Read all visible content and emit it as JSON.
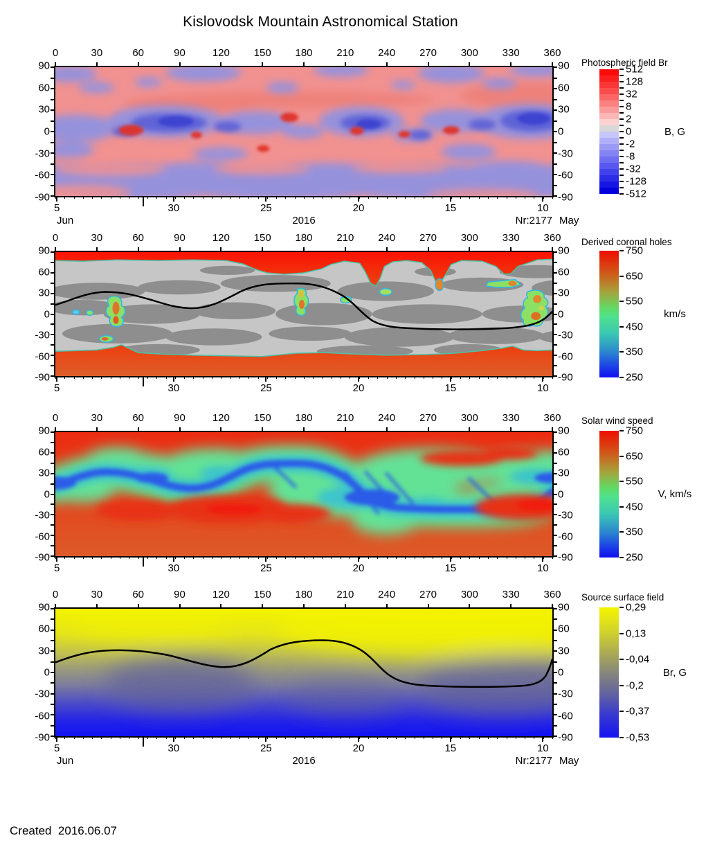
{
  "title": "Kislovodsk Mountain Astronomical Station",
  "footer": {
    "created": "Created  2016.06.07"
  },
  "axes": {
    "lon_labels": [
      "0",
      "30",
      "60",
      "90",
      "120",
      "150",
      "180",
      "210",
      "240",
      "270",
      "300",
      "330",
      "360"
    ],
    "lat_labels": [
      "90",
      "60",
      "30",
      "0",
      "-30",
      "-60",
      "-90"
    ],
    "date_labels": [
      "5",
      "30",
      "25",
      "20",
      "15",
      "10"
    ],
    "month_start": "Jun",
    "year": "2016",
    "rotation": "Nr:2177",
    "month_end": "May"
  },
  "panels": [
    {
      "name": "Photospheric field Br",
      "colorbar": {
        "title": "Photospheric field Br",
        "unit": "B, G",
        "labels": [
          "512",
          "128",
          "32",
          "8",
          "2",
          "0",
          "-2",
          "-8",
          "-32",
          "-128",
          "-512"
        ],
        "colors": [
          "#fb0a0a",
          "#fb2020",
          "#fb3636",
          "#fb4c4c",
          "#fb6666",
          "#fb8080",
          "#fb9a9a",
          "#fbb6b6",
          "#fbd2d2",
          "#d8d8d8",
          "#c6c6fa",
          "#b0b0f8",
          "#9a9af6",
          "#8484f4",
          "#6e6ef2",
          "#5858f0",
          "#4242ec",
          "#2c2ce8",
          "#1616e4",
          "#0202dd"
        ]
      }
    },
    {
      "name": "Derived coronal holes",
      "colorbar": {
        "title": "Derived coronal holes",
        "unit": "km/s",
        "labels": [
          "750",
          "650",
          "550",
          "450",
          "350",
          "250"
        ],
        "stops": [
          [
            "#ee0d00",
            0
          ],
          [
            "#cf5a1a",
            18
          ],
          [
            "#a7a13a",
            32
          ],
          [
            "#62d964",
            45
          ],
          [
            "#4fe18d",
            52
          ],
          [
            "#3bc9b2",
            65
          ],
          [
            "#2b86cf",
            80
          ],
          [
            "#1b3de8",
            92
          ],
          [
            "#120fee",
            100
          ]
        ]
      }
    },
    {
      "name": "Solar wind speed",
      "colorbar": {
        "title": "Solar wind speed",
        "unit": "V, km/s",
        "labels": [
          "750",
          "650",
          "550",
          "450",
          "350",
          "250"
        ],
        "stops": [
          [
            "#ee0d00",
            0
          ],
          [
            "#cf5a1a",
            18
          ],
          [
            "#a7a13a",
            32
          ],
          [
            "#62d964",
            45
          ],
          [
            "#4fe18d",
            52
          ],
          [
            "#3bc9b2",
            65
          ],
          [
            "#2b86cf",
            80
          ],
          [
            "#1b3de8",
            92
          ],
          [
            "#120fee",
            100
          ]
        ]
      }
    },
    {
      "name": "Source surface field",
      "colorbar": {
        "title": "Source surface field",
        "unit": "Br, G",
        "labels": [
          "0,29",
          "0,13",
          "-0,04",
          "-0,2",
          "-0,37",
          "-0,53"
        ],
        "stops": [
          [
            "#f6f600",
            0
          ],
          [
            "#cfcf30",
            20
          ],
          [
            "#a3a35c",
            38
          ],
          [
            "#83837f",
            52
          ],
          [
            "#5f5fa5",
            68
          ],
          [
            "#3a3ad0",
            82
          ],
          [
            "#1414f2",
            100
          ]
        ]
      }
    }
  ],
  "chart_data": [
    {
      "type": "heatmap",
      "title": "Photospheric field Br",
      "x_ticks": [
        0,
        30,
        60,
        90,
        120,
        150,
        180,
        210,
        240,
        270,
        300,
        330,
        360
      ],
      "y_ticks": [
        90,
        60,
        30,
        0,
        -30,
        -60,
        -90
      ],
      "date_ticks": [
        "Jun 5",
        "May 30",
        "May 25",
        "May 20",
        "May 15",
        "May 10"
      ],
      "year": "2016",
      "rotation": "Nr:2177",
      "colorbar": {
        "unit": "B, G",
        "scale": [
          512,
          128,
          32,
          8,
          2,
          0,
          -2,
          -8,
          -32,
          -128,
          -512
        ],
        "palette": "red(positive) / gray(0) / blue(negative)"
      },
      "pattern": "Mottled magnetogram: salmon (positive) patches dominate north mid-latitudes, periwinkle blue (negative) dominates an activity belt near lat 0-30 and the southern hemisphere; saturated red and blue spots mark active regions near the equator."
    },
    {
      "type": "heatmap",
      "title": "Derived coronal holes",
      "x_ticks": [
        0,
        30,
        60,
        90,
        120,
        150,
        180,
        210,
        240,
        270,
        300,
        330,
        360
      ],
      "y_ticks": [
        90,
        60,
        30,
        0,
        -30,
        -60,
        -90
      ],
      "date_ticks": [
        "Jun 5",
        "May 30",
        "May 25",
        "May 20",
        "May 15",
        "May 10"
      ],
      "colorbar": {
        "unit": "km/s",
        "scale": [
          750,
          650,
          550,
          450,
          350,
          250
        ]
      },
      "neutral_line_lon_lat": [
        [
          0,
          13
        ],
        [
          30,
          29
        ],
        [
          60,
          26
        ],
        [
          90,
          9
        ],
        [
          100,
          4
        ],
        [
          130,
          26
        ],
        [
          165,
          43
        ],
        [
          195,
          38
        ],
        [
          215,
          10
        ],
        [
          230,
          -12
        ],
        [
          250,
          -18
        ],
        [
          290,
          -20
        ],
        [
          320,
          -19
        ],
        [
          340,
          -14
        ],
        [
          352,
          -6
        ],
        [
          360,
          3
        ]
      ],
      "pattern": "Fast-wind coronal holes in red at both poles (north cap above ~lat 75, south cap below ~lat -62); gray quiet regions (light gray background with dark gray closed-field patches); small isolated low-latitude holes shown green/orange with cyan boundaries near lon 40, 175, 210, 240, 320, 350; black line = neutral line."
    },
    {
      "type": "heatmap",
      "title": "Solar wind speed",
      "x_ticks": [
        0,
        30,
        60,
        90,
        120,
        150,
        180,
        210,
        240,
        270,
        300,
        330,
        360
      ],
      "y_ticks": [
        90,
        60,
        30,
        0,
        -30,
        -60,
        -90
      ],
      "date_ticks": [
        "Jun 5",
        "May 30",
        "May 25",
        "May 20",
        "May 15",
        "May 10"
      ],
      "colorbar": {
        "unit": "V, km/s",
        "scale": [
          750,
          650,
          550,
          450,
          350,
          250
        ]
      },
      "pattern": "Fast wind (red, ~700-750 km/s) at high latitudes; a sinuous slow-wind band (green ~450, cyan ~400, blue core ~300 km/s) follows the heliospheric current sheet across mid/low latitudes."
    },
    {
      "type": "heatmap",
      "title": "Source surface field",
      "x_ticks": [
        0,
        30,
        60,
        90,
        120,
        150,
        180,
        210,
        240,
        270,
        300,
        330,
        360
      ],
      "y_ticks": [
        90,
        60,
        30,
        0,
        -30,
        -60,
        -90
      ],
      "date_ticks": [
        "Jun 5",
        "May 30",
        "May 25",
        "May 20",
        "May 15",
        "May 10"
      ],
      "year": "2016",
      "rotation": "Nr:2177",
      "colorbar": {
        "unit": "Br, G",
        "scale": [
          0.29,
          0.13,
          -0.04,
          -0.2,
          -0.37,
          -0.53
        ]
      },
      "neutral_line_lon_lat": [
        [
          0,
          13
        ],
        [
          30,
          29
        ],
        [
          60,
          27
        ],
        [
          105,
          10
        ],
        [
          130,
          23
        ],
        [
          165,
          44
        ],
        [
          195,
          43
        ],
        [
          215,
          20
        ],
        [
          235,
          -10
        ],
        [
          260,
          -17
        ],
        [
          300,
          -19
        ],
        [
          330,
          -17
        ],
        [
          350,
          -9
        ],
        [
          360,
          19
        ]
      ],
      "pattern": "Smooth source-surface field: positive (yellow) north, negative (blue) south, gray transition along the black neutral line."
    }
  ]
}
